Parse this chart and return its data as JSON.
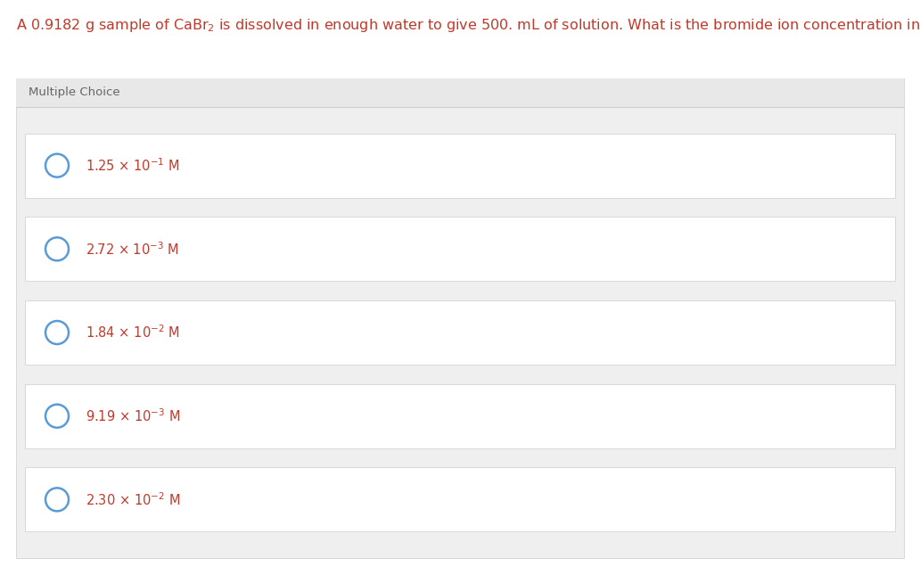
{
  "title_text": "A 0.9182 g sample of CaBr$_2$ is dissolved in enough water to give 500. mL of solution. What is the bromide ion concentration in this solution?",
  "title_color": "#c0392b",
  "title_fontsize": 11.5,
  "mc_label": "Multiple Choice",
  "mc_label_color": "#666666",
  "mc_label_fontsize": 9.5,
  "outer_bg": "#ffffff",
  "panel_bg": "#efefef",
  "option_bg": "#ffffff",
  "option_border_color": "#cccccc",
  "panel_border_color": "#cccccc",
  "circle_color": "#5b9bd5",
  "options": [
    {
      "coeff": "1.25",
      "exp": "-1"
    },
    {
      "coeff": "2.72",
      "exp": "-3"
    },
    {
      "coeff": "1.84",
      "exp": "-2"
    },
    {
      "coeff": "9.19",
      "exp": "-3"
    },
    {
      "coeff": "2.30",
      "exp": "-2"
    }
  ],
  "option_text_color": "#c0392b",
  "option_fontsize": 10.5,
  "fig_width": 10.32,
  "fig_height": 6.36,
  "dpi": 100
}
